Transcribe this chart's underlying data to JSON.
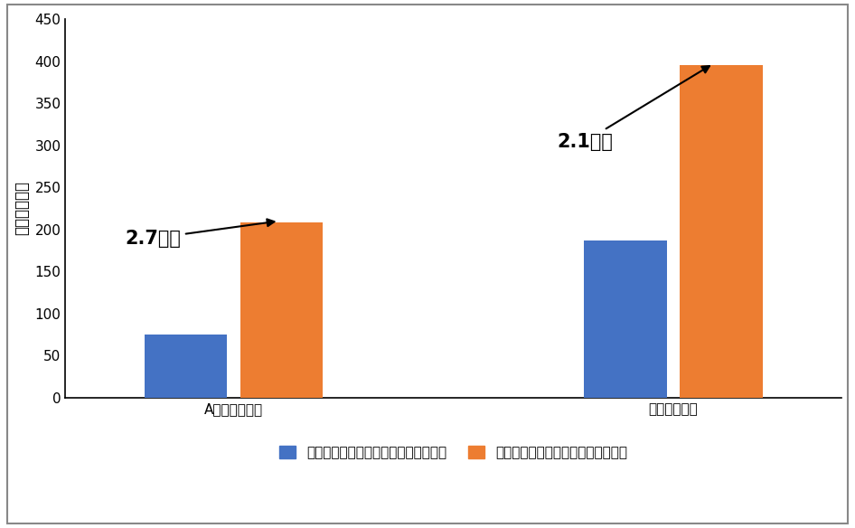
{
  "categories": [
    "Aグループ総計",
    "グループ平均"
  ],
  "before_values": [
    75,
    187
  ],
  "after_values": [
    208,
    395
  ],
  "before_color": "#4472C4",
  "after_color": "#ED7D31",
  "before_label": "導入前（７月実施のペーパーテスト）",
  "after_label": "導入後（アプリ内での最大回答数）",
  "ylabel": "回答数（問）",
  "ylim": [
    0,
    450
  ],
  "yticks": [
    0,
    50,
    100,
    150,
    200,
    250,
    300,
    350,
    400,
    450
  ],
  "annotation1_text": "2.7倍！",
  "annotation2_text": "2.1倍！",
  "bar_width": 0.32,
  "background_color": "#ffffff",
  "border_color": "#000000"
}
